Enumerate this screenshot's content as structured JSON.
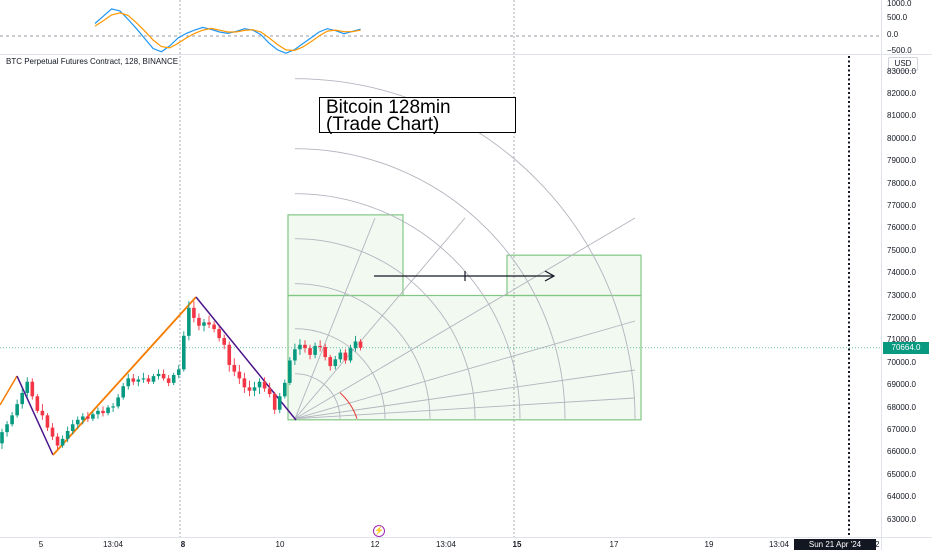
{
  "chart_data": {
    "type": "candlestick",
    "title": "Bitcoin 128min (Trade Chart)",
    "annotation_lines": [
      "Bitcoin 128min",
      "(Trade Chart)"
    ],
    "symbol": "BTC Perpetual Futures Contract, 128, BINANCE",
    "currency": "USD",
    "price_axis": {
      "ylim": [
        62500,
        83300
      ],
      "ticks": [
        83000,
        82000,
        81000,
        80000,
        79000,
        78000,
        77000,
        76000,
        75000,
        74000,
        73000,
        72000,
        71000,
        70000,
        69000,
        68000,
        67000,
        66000,
        65000,
        64000,
        63000
      ],
      "tick_labels": [
        "83000.0",
        "82000.0",
        "81000.0",
        "80000.0",
        "79000.0",
        "78000.0",
        "77000.0",
        "76000.0",
        "75000.0",
        "74000.0",
        "73000.0",
        "72000.0",
        "71000.0",
        "70000.0",
        "69000.0",
        "68000.0",
        "67000.0",
        "66000.0",
        "65000.0",
        "64000.0",
        "63000.0"
      ],
      "last_price": 70664.0,
      "last_price_label": "70664.0"
    },
    "time_axis": {
      "labels": [
        "5",
        "13:04",
        "8",
        "10",
        "12",
        "13:04",
        "15",
        "17",
        "19",
        "13:04",
        "22"
      ],
      "crosshair_label": "Sun 21 Apr '24"
    },
    "oscillator": {
      "ticks": [
        "1000.0",
        "500.0",
        "0.0",
        "−500.0"
      ],
      "series": [
        {
          "color": "#2196f3",
          "values": [
            380,
            600,
            820,
            760,
            500,
            220,
            -80,
            -380,
            -480,
            -300,
            -60,
            80,
            180,
            260,
            200,
            120,
            80,
            140,
            220,
            180,
            40,
            -220,
            -420,
            -520,
            -420,
            -240,
            -60,
            120,
            220,
            160,
            70,
            140,
            210
          ]
        },
        {
          "color": "#ff9800",
          "values": [
            300,
            460,
            640,
            700,
            620,
            400,
            150,
            -120,
            -320,
            -360,
            -220,
            -60,
            80,
            180,
            230,
            180,
            120,
            120,
            170,
            190,
            120,
            -60,
            -260,
            -420,
            -440,
            -340,
            -180,
            0,
            150,
            180,
            130,
            130,
            180
          ]
        }
      ]
    },
    "candles": [
      [
        66400,
        67050,
        66150,
        66900
      ],
      [
        66900,
        67400,
        66700,
        67250
      ],
      [
        67250,
        67800,
        67150,
        67650
      ],
      [
        67650,
        68350,
        67550,
        68150
      ],
      [
        68150,
        68850,
        67950,
        68650
      ],
      [
        68650,
        69350,
        68450,
        69150
      ],
      [
        69150,
        69300,
        68350,
        68500
      ],
      [
        68500,
        68600,
        67750,
        67850
      ],
      [
        67850,
        68150,
        67450,
        67650
      ],
      [
        67650,
        67750,
        66950,
        67100
      ],
      [
        67100,
        67300,
        66550,
        66700
      ],
      [
        66700,
        66850,
        66150,
        66300
      ],
      [
        66300,
        66750,
        66200,
        66600
      ],
      [
        66600,
        67150,
        66450,
        66950
      ],
      [
        66950,
        67450,
        66800,
        67250
      ],
      [
        67250,
        67600,
        67050,
        67450
      ],
      [
        67450,
        67750,
        67250,
        67600
      ],
      [
        67600,
        67800,
        67350,
        67500
      ],
      [
        67500,
        67800,
        67400,
        67700
      ],
      [
        67700,
        68000,
        67500,
        67850
      ],
      [
        67850,
        68050,
        67600,
        67750
      ],
      [
        67750,
        68100,
        67650,
        68000
      ],
      [
        68000,
        68200,
        67800,
        68050
      ],
      [
        68050,
        68600,
        67950,
        68450
      ],
      [
        68450,
        69100,
        68350,
        68950
      ],
      [
        68950,
        69500,
        68800,
        69300
      ],
      [
        69300,
        69500,
        69000,
        69150
      ],
      [
        69150,
        69400,
        68950,
        69250
      ],
      [
        69250,
        69550,
        69100,
        69300
      ],
      [
        69300,
        69450,
        69050,
        69150
      ],
      [
        69150,
        69500,
        69050,
        69400
      ],
      [
        69400,
        69700,
        69250,
        69500
      ],
      [
        69500,
        69700,
        69200,
        69300
      ],
      [
        69300,
        69450,
        68950,
        69100
      ],
      [
        69100,
        69550,
        69000,
        69450
      ],
      [
        69450,
        69900,
        69300,
        69700
      ],
      [
        69700,
        71400,
        69600,
        71200
      ],
      [
        71200,
        72750,
        71000,
        72450
      ],
      [
        72450,
        72750,
        71800,
        72000
      ],
      [
        72000,
        72200,
        71450,
        71650
      ],
      [
        71650,
        71950,
        71400,
        71800
      ],
      [
        71800,
        72100,
        71550,
        71700
      ],
      [
        71700,
        71850,
        71350,
        71500
      ],
      [
        71500,
        71650,
        70950,
        71100
      ],
      [
        71100,
        71250,
        70600,
        70800
      ],
      [
        70800,
        70950,
        69600,
        69900
      ],
      [
        69900,
        70200,
        69400,
        69600
      ],
      [
        69600,
        69900,
        69050,
        69300
      ],
      [
        69300,
        69550,
        68650,
        68900
      ],
      [
        68900,
        69200,
        68500,
        68750
      ],
      [
        68750,
        69150,
        68500,
        68900
      ],
      [
        68900,
        69300,
        68600,
        69150
      ],
      [
        69150,
        69350,
        68700,
        68850
      ],
      [
        68850,
        69100,
        68450,
        68600
      ],
      [
        68600,
        68700,
        67700,
        67900
      ],
      [
        67900,
        68650,
        67750,
        68500
      ],
      [
        68500,
        69250,
        68400,
        69100
      ],
      [
        69100,
        70250,
        69000,
        70100
      ],
      [
        70100,
        70850,
        69900,
        70600
      ],
      [
        70600,
        71050,
        70350,
        70800
      ],
      [
        70800,
        71000,
        70450,
        70650
      ],
      [
        70650,
        70800,
        70150,
        70350
      ],
      [
        70350,
        70900,
        70200,
        70750
      ],
      [
        70750,
        71000,
        70500,
        70700
      ],
      [
        70700,
        70850,
        70100,
        70250
      ],
      [
        70250,
        70350,
        69650,
        69850
      ],
      [
        69850,
        70300,
        69700,
        70150
      ],
      [
        70150,
        70600,
        70000,
        70450
      ],
      [
        70450,
        70600,
        69950,
        70100
      ],
      [
        70100,
        70800,
        70000,
        70650
      ],
      [
        70650,
        71200,
        70500,
        70950
      ],
      [
        70950,
        71050,
        70550,
        70664
      ]
    ],
    "drawings": {
      "zigzag_segments": [
        "orange",
        "purple"
      ],
      "arrow": "long position projection (right arrow)",
      "gann_box": "boxes with fan lines and arcs"
    }
  }
}
